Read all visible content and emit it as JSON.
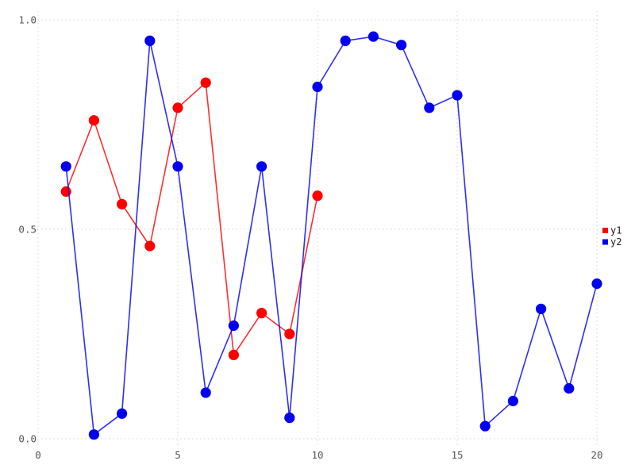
{
  "chart_data": {
    "type": "line",
    "title": "",
    "xlabel": "",
    "ylabel": "",
    "xlim": [
      0,
      20
    ],
    "ylim": [
      0.0,
      1.0
    ],
    "x_ticks": [
      0,
      5,
      10,
      15,
      20
    ],
    "x_tick_labels": [
      "0",
      "5",
      "10",
      "15",
      "20"
    ],
    "y_ticks": [
      0.0,
      0.5,
      1.0
    ],
    "y_tick_labels": [
      "0.0",
      "0.5",
      "1.0"
    ],
    "grid": "dotted",
    "marker": "filled-circle",
    "series": [
      {
        "name": "y1",
        "color": "#ff0000",
        "x": [
          1,
          2,
          3,
          4,
          5,
          6,
          7,
          8,
          9,
          10
        ],
        "values": [
          0.59,
          0.76,
          0.56,
          0.46,
          0.79,
          0.85,
          0.2,
          0.3,
          0.25,
          0.58
        ]
      },
      {
        "name": "y2",
        "color": "#0000ee",
        "x": [
          1,
          2,
          3,
          4,
          5,
          6,
          7,
          8,
          9,
          10,
          11,
          12,
          13,
          14,
          15,
          16,
          17,
          18,
          19,
          20
        ],
        "values": [
          0.65,
          0.01,
          0.06,
          0.95,
          0.65,
          0.11,
          0.27,
          0.65,
          0.05,
          0.84,
          0.95,
          0.96,
          0.94,
          0.79,
          0.82,
          0.03,
          0.09,
          0.31,
          0.12,
          0.37
        ]
      }
    ],
    "legend": {
      "position": "outside-right-center",
      "items": [
        {
          "label": "y1",
          "swatch_color": "#ff0000"
        },
        {
          "label": "y2",
          "swatch_color": "#0000ee"
        }
      ]
    }
  },
  "styles": {
    "background": "#ffffff",
    "grid_color": "#d4d4e0",
    "tick_label_color": "#55555a",
    "legend_text_color": "#1a1a1a"
  }
}
